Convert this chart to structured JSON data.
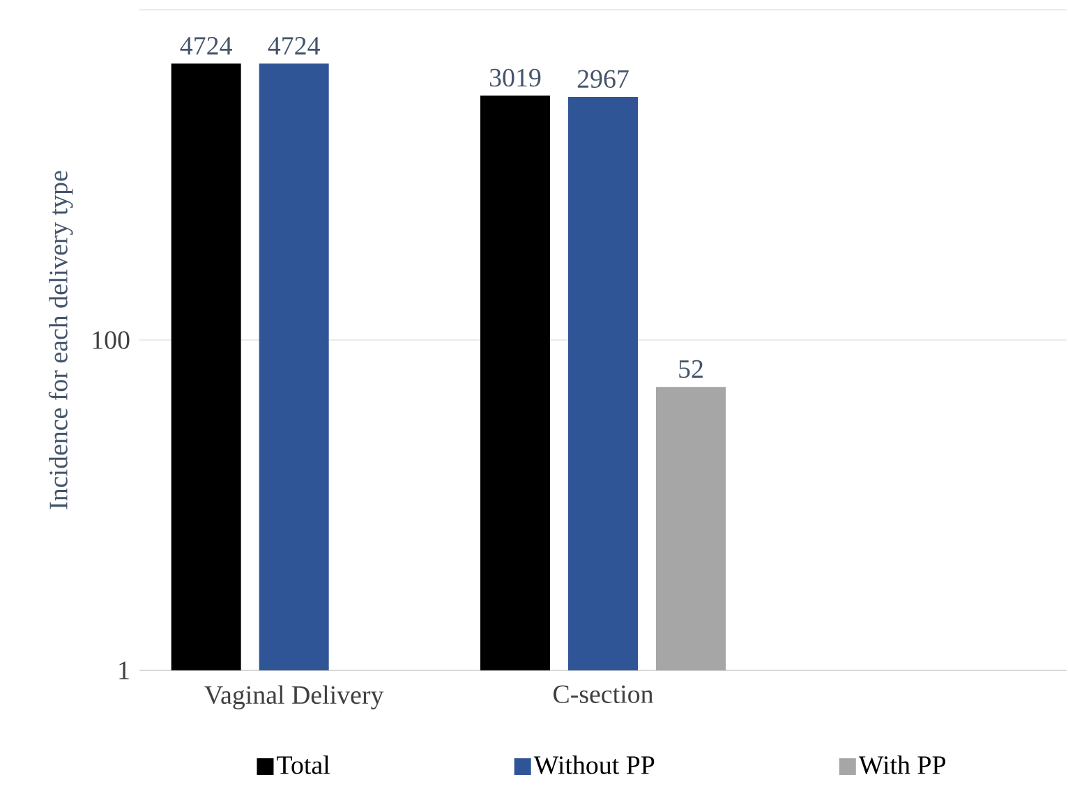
{
  "chart_data": {
    "type": "bar",
    "ylabel": "Incidence for each delivery type",
    "categories": [
      "Vaginal Delivery",
      "C-section",
      null
    ],
    "series": [
      {
        "name": "Total",
        "color": "#000000",
        "values": [
          4724,
          3019,
          null
        ]
      },
      {
        "name": "Without PP",
        "color": "#2f5597",
        "values": [
          4724,
          2967,
          null
        ]
      },
      {
        "name": "With PP",
        "color": "#a6a6a6",
        "values": [
          null,
          52,
          null
        ]
      }
    ],
    "log": true,
    "ylim": [
      1,
      10000
    ],
    "yticks": [
      1,
      100,
      {
        "value": 10000,
        "label": null
      }
    ],
    "grid": "y",
    "legend": "bottom",
    "data_labels": true
  }
}
